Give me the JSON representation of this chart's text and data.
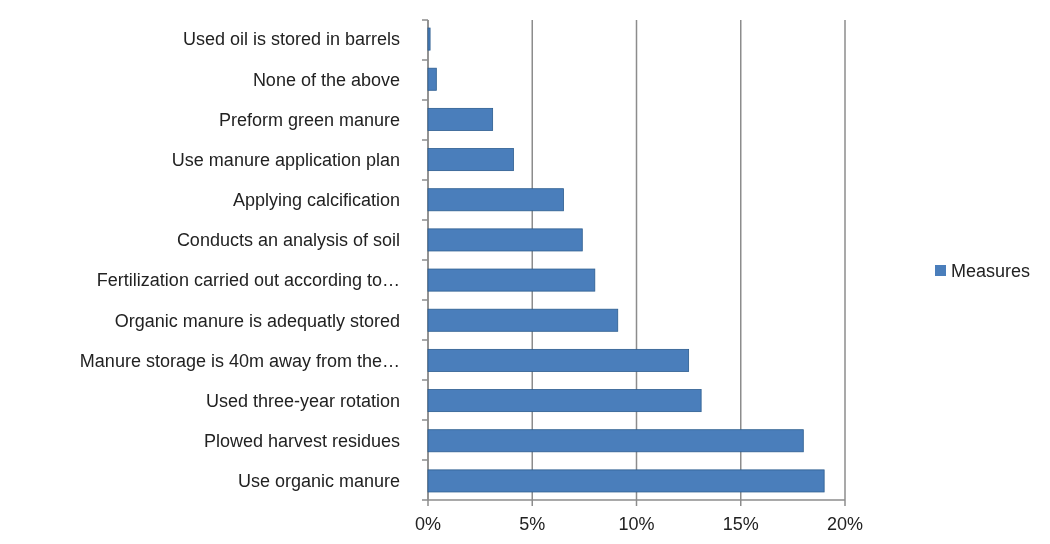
{
  "chart_data": {
    "type": "bar",
    "orientation": "horizontal",
    "categories": [
      "Used oil is stored in barrels",
      "None of the above",
      "Preform green manure",
      "Use manure application plan",
      "Applying calcification",
      "Conducts an analysis of soil",
      "Fertilization carried out according to…",
      "Organic manure is adequatly stored",
      "Manure storage is 40m away from the…",
      "Used three-year rotation",
      "Plowed harvest residues",
      "Use organic manure"
    ],
    "series": [
      {
        "name": "Measures",
        "color": "#4a7ebb",
        "values": [
          0.1,
          0.4,
          3.1,
          4.1,
          6.5,
          7.4,
          8.0,
          9.1,
          12.5,
          13.1,
          18.0,
          19.0
        ]
      }
    ],
    "xlim": [
      0,
      20
    ],
    "xticks": [
      {
        "value": 0,
        "label": "0%"
      },
      {
        "value": 5,
        "label": "5%"
      },
      {
        "value": 10,
        "label": "10%"
      },
      {
        "value": 15,
        "label": "15%"
      },
      {
        "value": 20,
        "label": "20%"
      }
    ],
    "grid": "x",
    "legend": "right"
  }
}
